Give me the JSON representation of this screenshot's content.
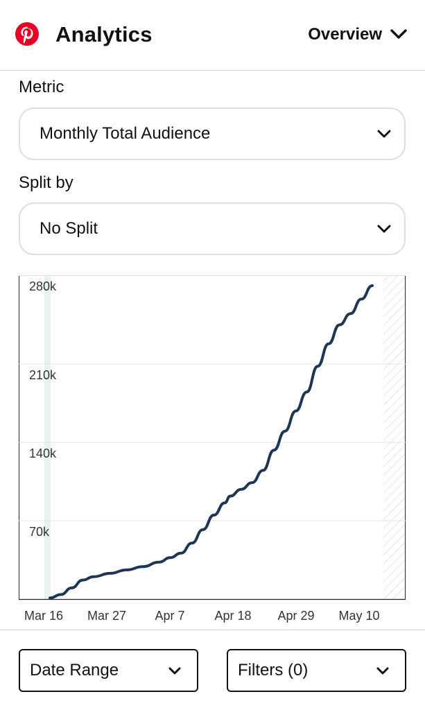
{
  "header": {
    "app_title": "Analytics",
    "view_selector": "Overview",
    "brand_color": "#E60023"
  },
  "metric": {
    "label": "Metric",
    "value": "Monthly Total Audience"
  },
  "split": {
    "label": "Split by",
    "value": "No Split"
  },
  "chart_data": {
    "type": "line",
    "title": "",
    "xlabel": "",
    "ylabel": "",
    "x_tick_labels": [
      "Mar 16",
      "Mar 27",
      "Apr 7",
      "Apr 18",
      "Apr 29",
      "May 10"
    ],
    "y_tick_labels": [
      "70k",
      "140k",
      "210k",
      "280k"
    ],
    "y_ticks": [
      70000,
      140000,
      210000,
      280000
    ],
    "ylim": [
      0,
      280000
    ],
    "x_start": "2020-03-16",
    "x_end": "2020-05-14",
    "grid": true,
    "line_color": "#1E3554",
    "series": [
      {
        "x": [
          "2020-03-16",
          "2020-03-18",
          "2020-03-20",
          "2020-03-22",
          "2020-03-24",
          "2020-03-27",
          "2020-03-30",
          "2020-04-02",
          "2020-04-05",
          "2020-04-07",
          "2020-04-09",
          "2020-04-11",
          "2020-04-13",
          "2020-04-15",
          "2020-04-17",
          "2020-04-18",
          "2020-04-20",
          "2020-04-22",
          "2020-04-24",
          "2020-04-26",
          "2020-04-28",
          "2020-04-30",
          "2020-05-02",
          "2020-05-04",
          "2020-05-06",
          "2020-05-08",
          "2020-05-10",
          "2020-05-12",
          "2020-05-14"
        ],
        "values": [
          1000,
          4000,
          10000,
          17000,
          20000,
          23000,
          26000,
          29000,
          33000,
          37000,
          41000,
          50000,
          62000,
          75000,
          86000,
          92000,
          98000,
          104000,
          115000,
          133000,
          150000,
          168000,
          185000,
          208000,
          228000,
          245000,
          255000,
          268000,
          280000
        ]
      }
    ]
  },
  "footer": {
    "date_range_label": "Date Range",
    "filters_label": "Filters (0)"
  }
}
